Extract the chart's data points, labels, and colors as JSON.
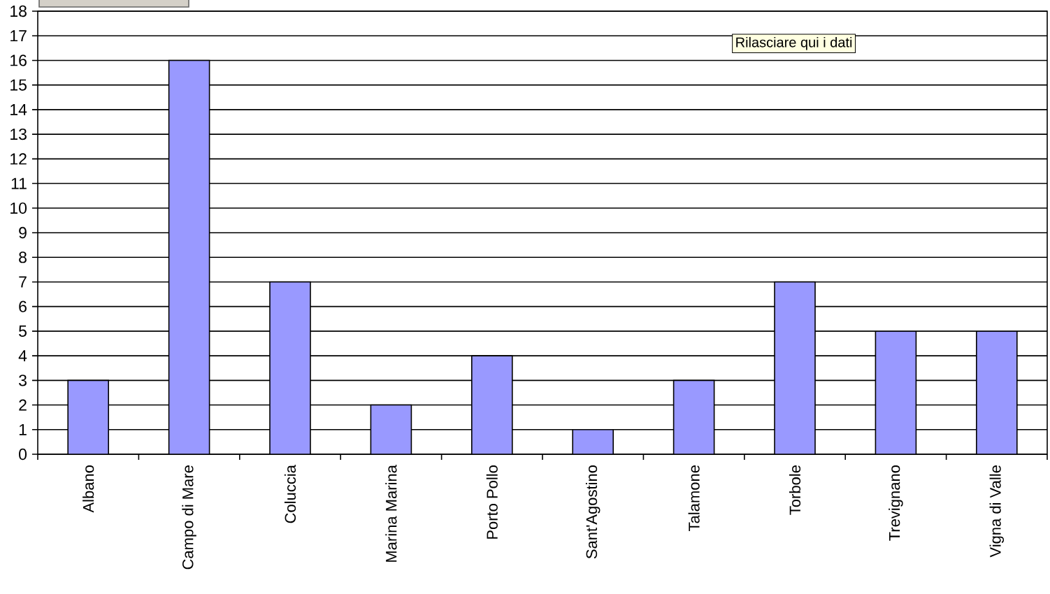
{
  "chart_data": {
    "type": "bar",
    "categories": [
      "Albano",
      "Campo di Mare",
      "Coluccia",
      "Marina Marina",
      "Porto Pollo",
      "Sant'Agostino",
      "Talamone",
      "Torbole",
      "Trevignano",
      "Vigna di Valle"
    ],
    "values": [
      3,
      16,
      7,
      2,
      4,
      1,
      3,
      7,
      5,
      5
    ],
    "color": "#9999ff",
    "ylim": [
      0,
      18
    ],
    "yticks": [
      0,
      1,
      2,
      3,
      4,
      5,
      6,
      7,
      8,
      9,
      10,
      11,
      12,
      13,
      14,
      15,
      16,
      17,
      18
    ],
    "grid": "y",
    "annotations": [
      "Rilasciare qui i dati"
    ]
  }
}
